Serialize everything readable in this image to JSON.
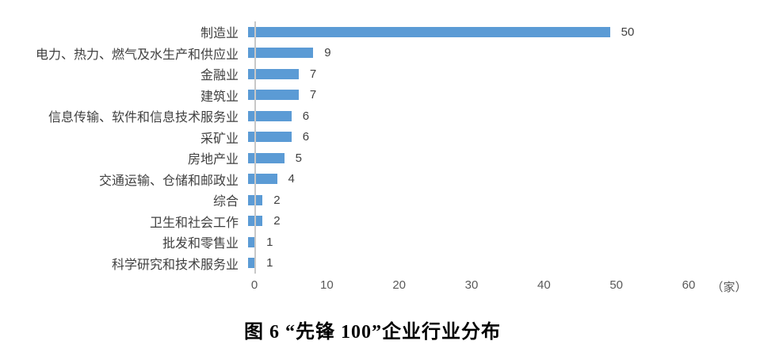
{
  "chart_data": {
    "type": "bar",
    "orientation": "horizontal",
    "title": "图 6 “先锋 100”企业行业分布",
    "unit_label": "（家）",
    "categories": [
      "制造业",
      "电力、热力、燃气及水生产和供应业",
      "金融业",
      "建筑业",
      "信息传输、软件和信息技术服务业",
      "采矿业",
      "房地产业",
      "交通运输、仓储和邮政业",
      "综合",
      "卫生和社会工作",
      "批发和零售业",
      "科学研究和技术服务业"
    ],
    "values": [
      50,
      9,
      7,
      7,
      6,
      6,
      5,
      4,
      2,
      2,
      1,
      1
    ],
    "x_ticks": [
      0,
      10,
      20,
      30,
      40,
      50,
      60
    ],
    "xlim": [
      0,
      60
    ],
    "value_labels_shown": true,
    "grid": false,
    "legend_position": "none",
    "bar_color": "#5B9BD5",
    "axis_line_color": "#C8C8C8",
    "tick_label_color": "#595959",
    "category_label_color": "#404040"
  }
}
